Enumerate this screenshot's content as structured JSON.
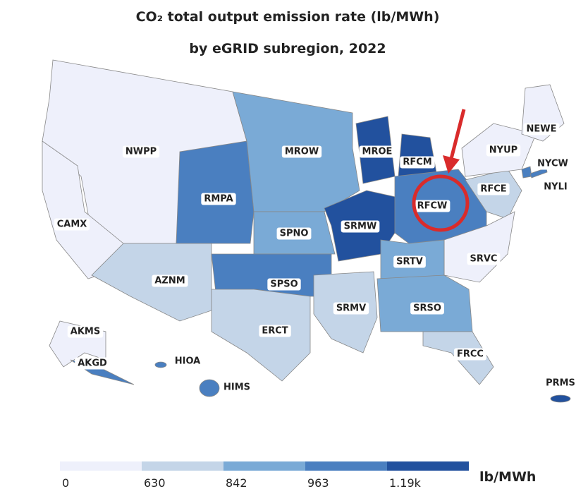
{
  "title": "CO₂ total output emission rate (lb/MWh)",
  "subtitle": "by eGRID subregion, 2022",
  "regions": [
    {
      "label": "NWPP",
      "color": "#eef0fb"
    },
    {
      "label": "CAMX",
      "color": "#eef0fb"
    },
    {
      "label": "RMPA",
      "color": "#4a7fc0"
    },
    {
      "label": "MROW",
      "color": "#7aaad6"
    },
    {
      "label": "MROE",
      "color": "#22519e"
    },
    {
      "label": "RFCM",
      "color": "#22519e"
    },
    {
      "label": "SRMW",
      "color": "#22519e"
    },
    {
      "label": "SPNO",
      "color": "#7aaad6"
    },
    {
      "label": "RFCW",
      "color": "#4a7fc0"
    },
    {
      "label": "RFCE",
      "color": "#c4d5e8"
    },
    {
      "label": "NYUP",
      "color": "#eef0fb"
    },
    {
      "label": "NEWE",
      "color": "#eef0fb"
    },
    {
      "label": "NYCW",
      "color": "#4a7fc0"
    },
    {
      "label": "NYLI",
      "color": "#4a7fc0"
    },
    {
      "label": "SRVC",
      "color": "#eef0fb"
    },
    {
      "label": "SRTV",
      "color": "#7aaad6"
    },
    {
      "label": "AZNM",
      "color": "#c4d5e8"
    },
    {
      "label": "SPSO",
      "color": "#4a7fc0"
    },
    {
      "label": "ERCT",
      "color": "#c4d5e8"
    },
    {
      "label": "SRMV",
      "color": "#c4d5e8"
    },
    {
      "label": "SRSO",
      "color": "#7aaad6"
    },
    {
      "label": "FRCC",
      "color": "#c4d5e8"
    },
    {
      "label": "AKMS",
      "color": "#eef0fb"
    },
    {
      "label": "AKGD",
      "color": "#4a7fc0"
    },
    {
      "label": "HIOA",
      "color": "#4a7fc0"
    },
    {
      "label": "HIMS",
      "color": "#4a7fc0"
    },
    {
      "label": "PRMS",
      "color": "#22519e"
    }
  ],
  "legend": {
    "colors": [
      "#eef0fb",
      "#c4d5e8",
      "#7aaad6",
      "#4a7fc0",
      "#22519e"
    ],
    "ticks": [
      0,
      630,
      842,
      963,
      {
        "value": 1190,
        "label": "1.19k"
      }
    ],
    "unit": "lb/MWh"
  }
}
